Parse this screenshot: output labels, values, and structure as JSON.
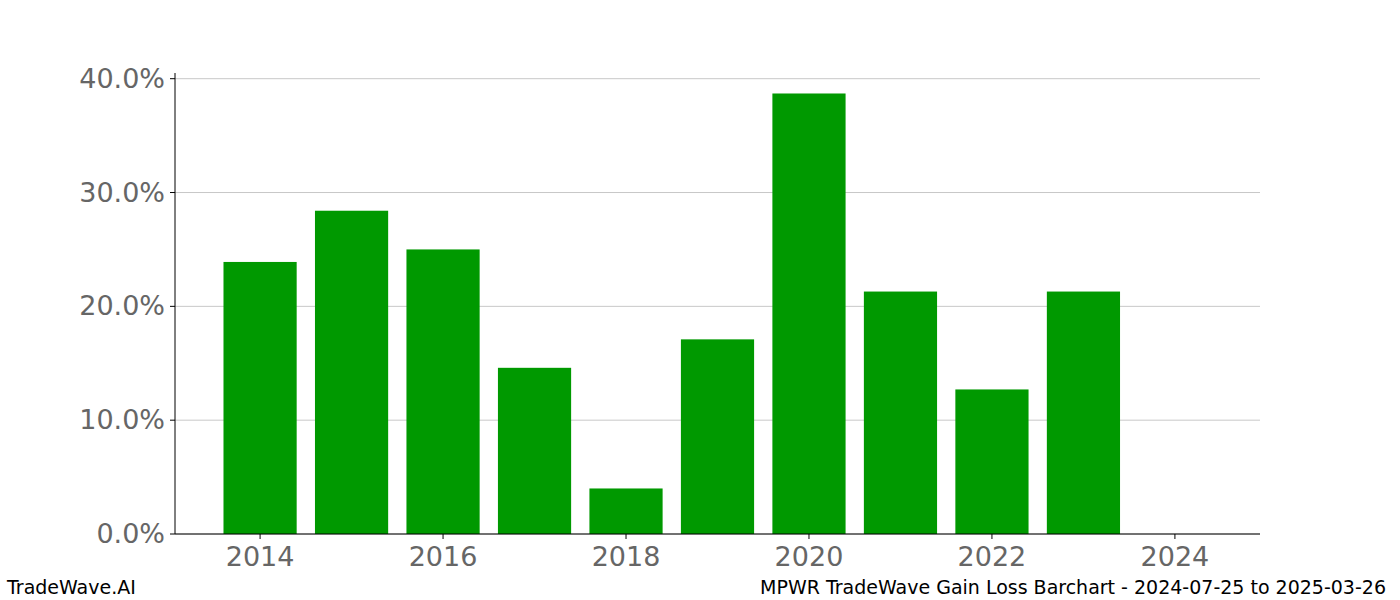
{
  "chart_data": {
    "type": "bar",
    "title": "MPWR TradeWave Gain Loss Barchart - 2024-07-25 to 2025-03-26",
    "annotations": [
      "TradeWave.AI"
    ],
    "x": [
      2014,
      2015,
      2016,
      2017,
      2018,
      2019,
      2020,
      2021,
      2022,
      2023
    ],
    "values": [
      23.9,
      28.4,
      25.0,
      14.6,
      4.0,
      17.1,
      38.7,
      21.3,
      12.7,
      21.3
    ],
    "color": "#009900",
    "xlim": [
      2013.07,
      2024.93
    ],
    "xticks": [
      2014,
      2016,
      2018,
      2020,
      2022,
      2024
    ],
    "ylim": [
      0,
      40.5
    ],
    "yticks": [
      {
        "value": 0,
        "label": "0.0%"
      },
      {
        "value": 10,
        "label": "10.0%"
      },
      {
        "value": 20,
        "label": "20.0%"
      },
      {
        "value": 30,
        "label": "30.0%"
      },
      {
        "value": 40,
        "label": "40.0%"
      }
    ],
    "grid": true
  }
}
